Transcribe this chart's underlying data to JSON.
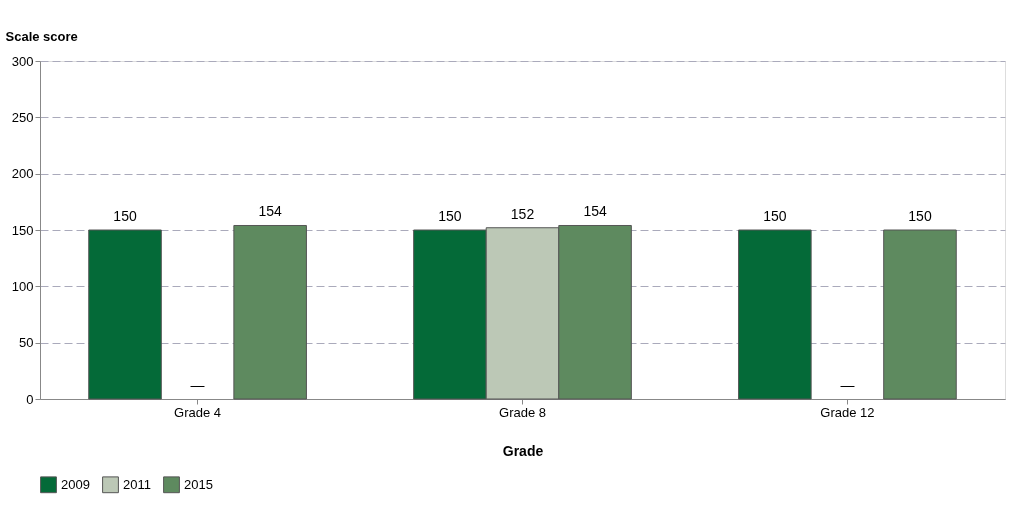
{
  "chart_data": {
    "type": "bar",
    "xlabel": "Grade",
    "ylabel": "Scale score",
    "categories": [
      "Grade 4",
      "Grade 8",
      "Grade 12"
    ],
    "series": [
      {
        "name": "2009",
        "color": "#046a38",
        "values": [
          150,
          150,
          150
        ],
        "value_labels": [
          "150",
          "150",
          "150"
        ]
      },
      {
        "name": "2011",
        "color": "#bcc8b6",
        "values": [
          null,
          152,
          null
        ],
        "value_labels": [
          "—",
          "152",
          "—"
        ]
      },
      {
        "name": "2015",
        "color": "#5e8a5f",
        "values": [
          154,
          154,
          150
        ],
        "value_labels": [
          "154",
          "154",
          "150"
        ]
      }
    ],
    "ylim": [
      0,
      300
    ],
    "yticks": [
      0,
      50,
      100,
      150,
      200,
      250,
      300
    ],
    "grid": "y",
    "legend": "bottom"
  }
}
